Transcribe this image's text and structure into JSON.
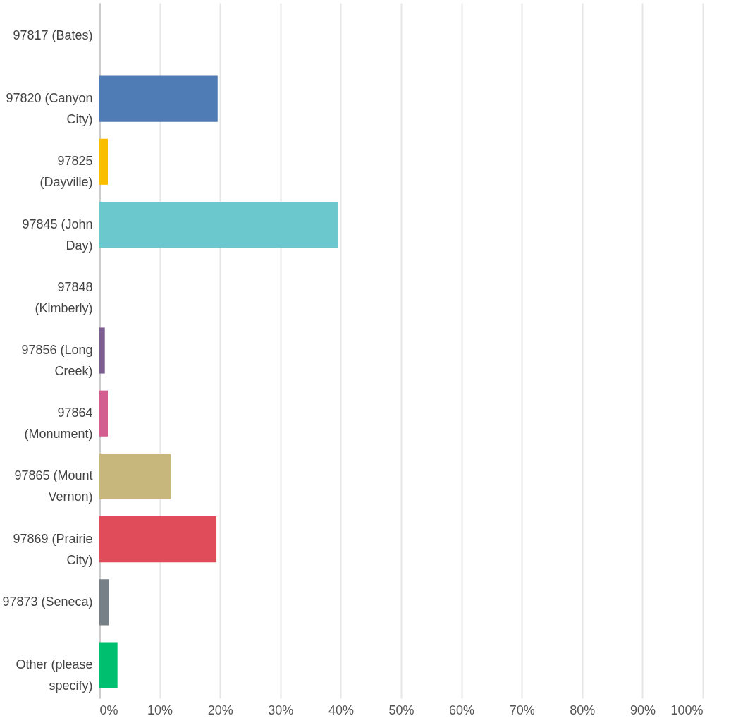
{
  "chart_data": {
    "type": "bar",
    "orientation": "horizontal",
    "categories": [
      "97817 (Bates)",
      "97820 (Canyon City)",
      "97825 (Dayville)",
      "97845 (John Day)",
      "97848 (Kimberly)",
      "97856 (Long Creek)",
      "97864 (Monument)",
      "97865 (Mount Vernon)",
      "97869 (Prairie City)",
      "97873 (Seneca)",
      "Other (please specify)"
    ],
    "values": [
      0,
      19.6,
      1.4,
      39.6,
      0,
      0.9,
      1.4,
      11.8,
      19.4,
      1.6,
      3.0
    ],
    "colors": [
      "#00bf6f",
      "#507cb6",
      "#f9be00",
      "#6bc8cd",
      "#ff8b4f",
      "#7d5e90",
      "#d25f90",
      "#c8b77d",
      "#e04c5a",
      "#768086",
      "#00bf6f"
    ],
    "xlim": [
      0,
      100
    ],
    "xticks": [
      {
        "value": 0,
        "label": "0%"
      },
      {
        "value": 10,
        "label": "10%"
      },
      {
        "value": 20,
        "label": "20%"
      },
      {
        "value": 30,
        "label": "30%"
      },
      {
        "value": 40,
        "label": "40%"
      },
      {
        "value": 50,
        "label": "50%"
      },
      {
        "value": 60,
        "label": "60%"
      },
      {
        "value": 70,
        "label": "70%"
      },
      {
        "value": 80,
        "label": "80%"
      },
      {
        "value": 90,
        "label": "90%"
      },
      {
        "value": 100,
        "label": "100%"
      }
    ],
    "grid": "x"
  }
}
